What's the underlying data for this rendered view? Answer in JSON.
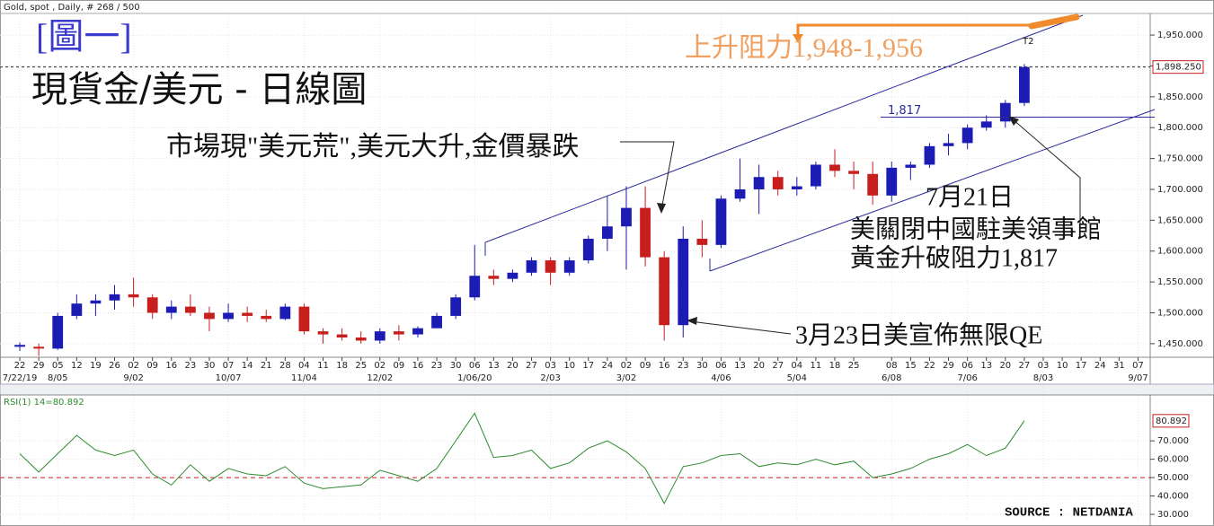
{
  "header": "Gold, spot , Daily, # 268 / 500",
  "source": "SOURCE : NETDANIA",
  "chart_data": [
    {
      "type": "candlestick",
      "figure_label": "[圖一]",
      "title": "現貨金/美元 - 日線圖",
      "annotations": [
        "市場現\"美元荒\",美元大升,金價暴跌",
        "上升阻力1,948-1,956",
        "T2",
        "7月21日",
        "美關閉中國駐美領事館",
        "黃金升破阻力1,817",
        "3月23日美宣佈無限QE"
      ],
      "categories": [
        "22",
        "29",
        "05",
        "12",
        "19",
        "26",
        "02",
        "09",
        "16",
        "23",
        "30",
        "07",
        "14",
        "21",
        "28",
        "04",
        "11",
        "18",
        "25",
        "02",
        "09",
        "16",
        "23",
        "30",
        "06",
        "13",
        "20",
        "27",
        "03",
        "10",
        "17",
        "24",
        "02",
        "09",
        "16",
        "23",
        "30",
        "06",
        "13",
        "20",
        "27",
        "04",
        "11",
        "18",
        "25",
        null,
        "08",
        "15",
        "22",
        "29",
        "06",
        "13",
        "20",
        "27",
        "03",
        "10",
        "17",
        "24",
        "31",
        "07"
      ],
      "month_labels": [
        "7/22/19",
        null,
        "8/05",
        null,
        null,
        null,
        "9/02",
        null,
        null,
        null,
        null,
        "10/07",
        null,
        null,
        null,
        "11/04",
        null,
        null,
        null,
        "12/02",
        null,
        null,
        null,
        null,
        "1/06/20",
        null,
        null,
        null,
        "2/03",
        null,
        null,
        null,
        "3/02",
        null,
        null,
        null,
        null,
        "4/06",
        null,
        null,
        null,
        "5/04",
        null,
        null,
        null,
        null,
        "6/08",
        null,
        null,
        null,
        "7/06",
        null,
        null,
        null,
        "8/03",
        null,
        null,
        null,
        null,
        "9/07"
      ],
      "open": [
        1445,
        1445,
        1442,
        1495,
        1515,
        1520,
        1530,
        1525,
        1500,
        1510,
        1500,
        1490,
        1500,
        1495,
        1490,
        1510,
        1470,
        1465,
        1460,
        1455,
        1470,
        1465,
        1475,
        1495,
        1525,
        1560,
        1555,
        1565,
        1585,
        1565,
        1585,
        1620,
        1640,
        1670,
        1590,
        1480,
        1620,
        1610,
        1685,
        1700,
        1720,
        1700,
        1705,
        1740,
        1730,
        1725,
        1690,
        1735,
        1740,
        1770,
        1775,
        1800,
        1810,
        1840,
        null,
        null,
        null,
        null,
        null,
        null
      ],
      "high": [
        1452,
        1450,
        1500,
        1530,
        1530,
        1545,
        1557,
        1530,
        1520,
        1530,
        1510,
        1515,
        1510,
        1505,
        1515,
        1515,
        1475,
        1475,
        1470,
        1475,
        1480,
        1478,
        1500,
        1530,
        1610,
        1570,
        1570,
        1590,
        1590,
        1590,
        1625,
        1690,
        1705,
        1705,
        1600,
        1640,
        1650,
        1690,
        1750,
        1740,
        1730,
        1720,
        1745,
        1765,
        1745,
        1745,
        1745,
        1745,
        1775,
        1790,
        1805,
        1820,
        1845,
        1903,
        null,
        null,
        null,
        null,
        null,
        null
      ],
      "low": [
        1438,
        1430,
        1440,
        1490,
        1495,
        1505,
        1510,
        1490,
        1490,
        1495,
        1470,
        1485,
        1485,
        1485,
        1488,
        1465,
        1450,
        1455,
        1450,
        1450,
        1455,
        1460,
        1475,
        1490,
        1520,
        1545,
        1550,
        1560,
        1545,
        1560,
        1580,
        1600,
        1570,
        1575,
        1455,
        1460,
        1590,
        1605,
        1680,
        1660,
        1690,
        1690,
        1700,
        1720,
        1700,
        1675,
        1680,
        1715,
        1735,
        1755,
        1765,
        1795,
        1800,
        1835,
        null,
        null,
        null,
        null,
        null,
        null
      ],
      "close": [
        1448,
        1442,
        1495,
        1515,
        1520,
        1530,
        1525,
        1500,
        1510,
        1500,
        1490,
        1500,
        1495,
        1490,
        1510,
        1470,
        1465,
        1460,
        1455,
        1470,
        1465,
        1475,
        1495,
        1525,
        1560,
        1555,
        1565,
        1585,
        1565,
        1585,
        1620,
        1640,
        1670,
        1590,
        1480,
        1620,
        1610,
        1685,
        1700,
        1720,
        1700,
        1705,
        1740,
        1730,
        1725,
        1690,
        1735,
        1740,
        1770,
        1775,
        1800,
        1810,
        1840,
        1898.25,
        null,
        null,
        null,
        null,
        null,
        null
      ],
      "up_color": "#1c1cb4",
      "down_color": "#c81e1e",
      "ylim": [
        1428,
        1985
      ],
      "yticks": [
        {
          "value": 1450,
          "label": "1,450.000"
        },
        {
          "value": 1500,
          "label": "1,500.000"
        },
        {
          "value": 1550,
          "label": "1,550.000"
        },
        {
          "value": 1600,
          "label": "1,600.000"
        },
        {
          "value": 1650,
          "label": "1,650.000"
        },
        {
          "value": 1700,
          "label": "1,700.000"
        },
        {
          "value": 1750,
          "label": "1,750.000"
        },
        {
          "value": 1800,
          "label": "1,800.000"
        },
        {
          "value": 1850,
          "label": "1,850.000"
        },
        {
          "value": 1900,
          "label": "1,900.000"
        },
        {
          "value": 1950,
          "label": "1,950.000"
        }
      ],
      "last_price": 1898.25,
      "last_price_label": "1,898.250",
      "resistance": 1817,
      "resistance_label": "1,817",
      "grid": true
    },
    {
      "type": "line",
      "title": "RSI(1) 14=80.892",
      "color": "#2e8b2e",
      "values": [
        63,
        53,
        63,
        73,
        65,
        62,
        65,
        52,
        46,
        57,
        48,
        55,
        52,
        51,
        56,
        47,
        44,
        45,
        46,
        54,
        51,
        48,
        55,
        70,
        85,
        61,
        62,
        65,
        55,
        58,
        66,
        70,
        64,
        55,
        36,
        56,
        58,
        62,
        63,
        56,
        58,
        57,
        60,
        57,
        59,
        50,
        52,
        55,
        60,
        63,
        68,
        62,
        66,
        80.892,
        null,
        null,
        null,
        null,
        null,
        null
      ],
      "last_label": "80.892",
      "reference_line": 50,
      "ylim": [
        26.6,
        94
      ],
      "yticks": [
        {
          "value": 30,
          "label": "30.000"
        },
        {
          "value": 40,
          "label": "40.000"
        },
        {
          "value": 50,
          "label": "50.000"
        },
        {
          "value": 60,
          "label": "60.000"
        },
        {
          "value": 70,
          "label": "70.000"
        }
      ],
      "grid": true
    }
  ]
}
